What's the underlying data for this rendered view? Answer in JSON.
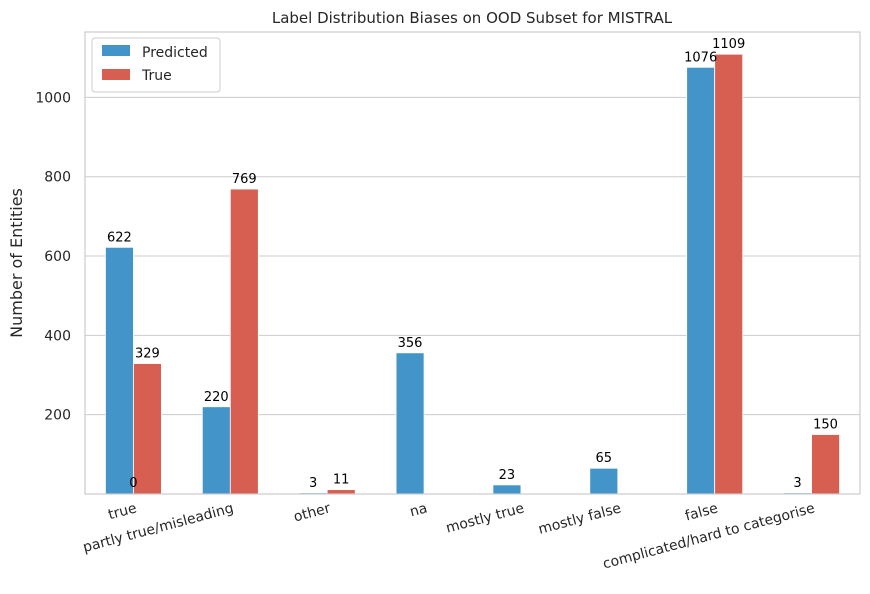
{
  "chart_data": {
    "type": "bar",
    "title": "Label Distribution Biases on OOD Subset for MISTRAL",
    "xlabel": "",
    "ylabel": "Number of Entities",
    "categories": [
      "true",
      "partly true/misleading",
      "other",
      "na",
      "mostly true",
      "mostly false",
      "false",
      "complicated/hard to categorise"
    ],
    "series": [
      {
        "name": "Predicted",
        "color": "#4394c9",
        "values": [
          622,
          220,
          3,
          356,
          23,
          65,
          1076,
          3
        ],
        "labels": [
          "622",
          "220",
          "3",
          "356",
          "23",
          "65",
          "1076",
          "3"
        ]
      },
      {
        "name": "True",
        "color": "#d65f51",
        "values": [
          329,
          769,
          11,
          0,
          0,
          0,
          1109,
          150
        ],
        "labels": [
          "329",
          "769",
          "11",
          "",
          "",
          "",
          "1109",
          "150"
        ]
      }
    ],
    "extra_labels": [
      {
        "text": "0",
        "category": "true"
      }
    ],
    "ylim": [
      0,
      1165
    ],
    "yticks": [
      200,
      400,
      600,
      800,
      1000
    ],
    "grid": true,
    "legend_position": "top-left"
  }
}
